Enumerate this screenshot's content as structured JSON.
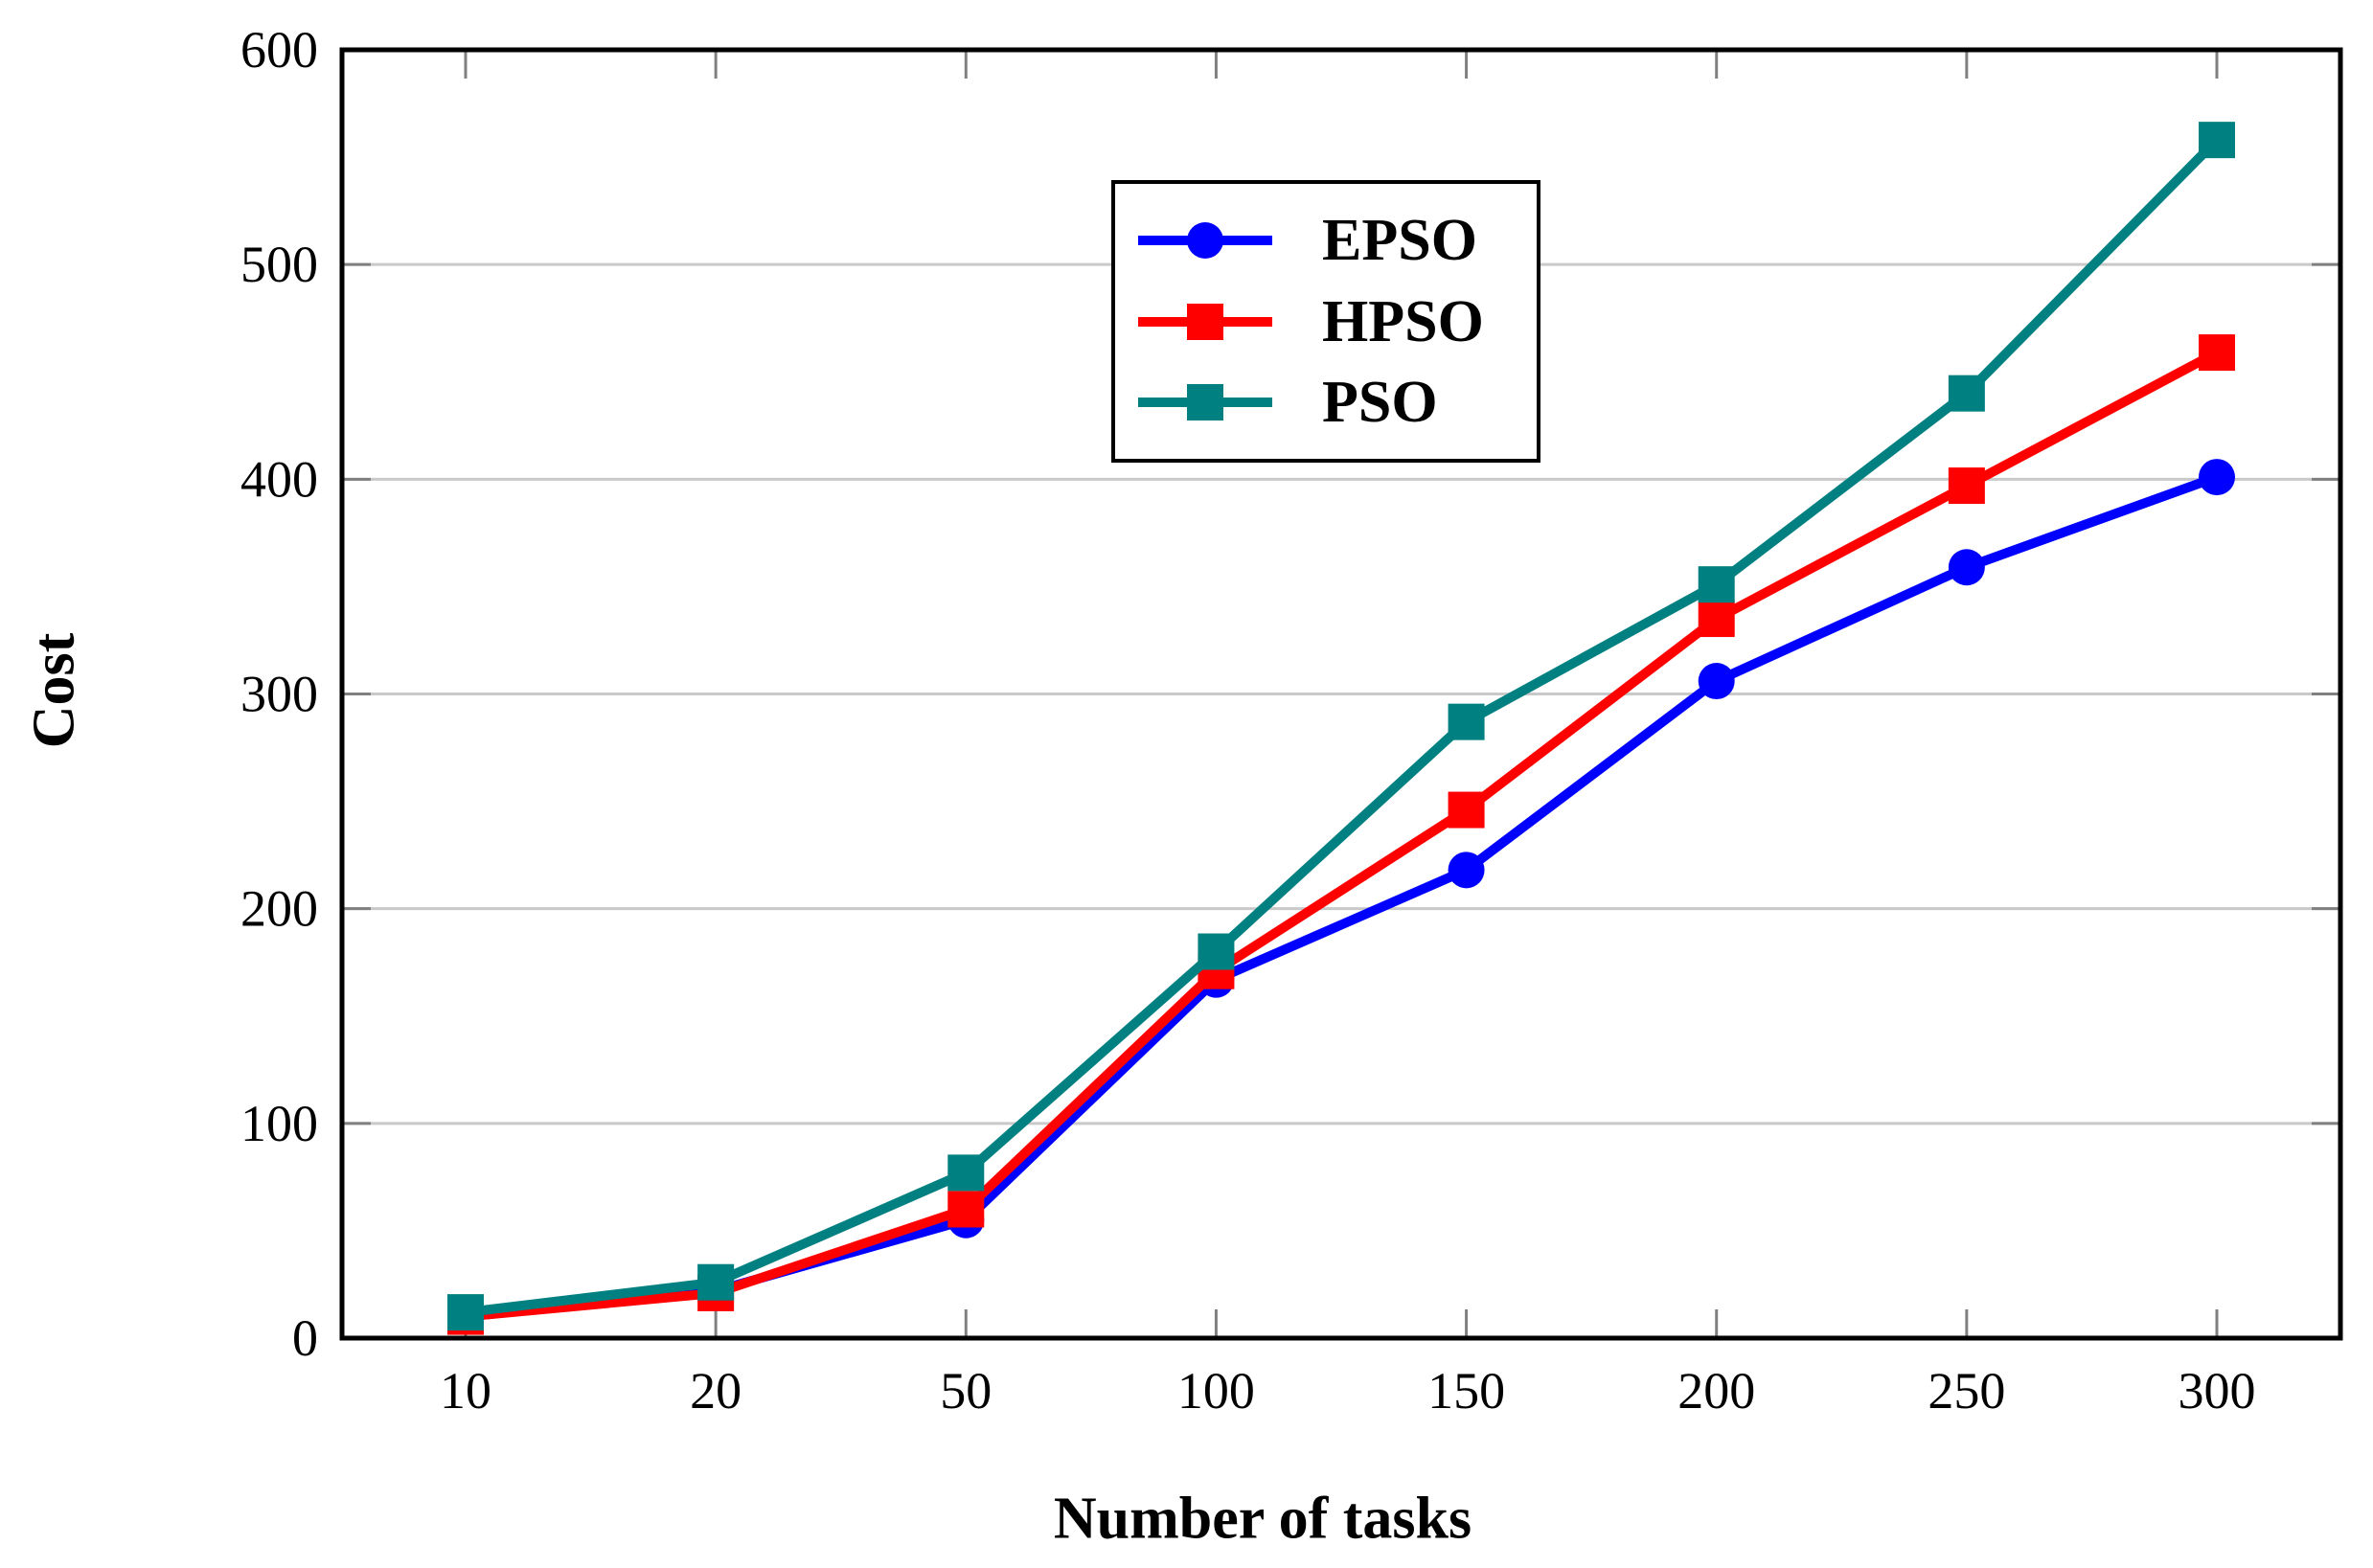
{
  "chart_data": {
    "type": "line",
    "title": "",
    "xlabel": "Number of tasks",
    "ylabel": "Cost",
    "categories": [
      10,
      20,
      50,
      100,
      150,
      200,
      250,
      300
    ],
    "series": [
      {
        "name": "EPSO",
        "color": "#0000ff",
        "marker": "circle",
        "values": [
          10,
          22,
          55,
          167,
          218,
          306,
          359,
          401
        ]
      },
      {
        "name": "HPSO",
        "color": "#ff0000",
        "marker": "square",
        "values": [
          10,
          21,
          60,
          171,
          246,
          335,
          397,
          459
        ]
      },
      {
        "name": "PSO",
        "color": "#008080",
        "marker": "square",
        "values": [
          12,
          26,
          77,
          180,
          287,
          351,
          440,
          558
        ]
      }
    ],
    "ylim": [
      0,
      600
    ],
    "yticks": [
      0,
      100,
      200,
      300,
      400,
      500,
      600
    ],
    "grid": "horizontal-100s",
    "legend_position": "top-center-inside",
    "axis_frame_color": "#000000",
    "grid_color": "#c9c9c9",
    "tick_color": "#808080"
  }
}
